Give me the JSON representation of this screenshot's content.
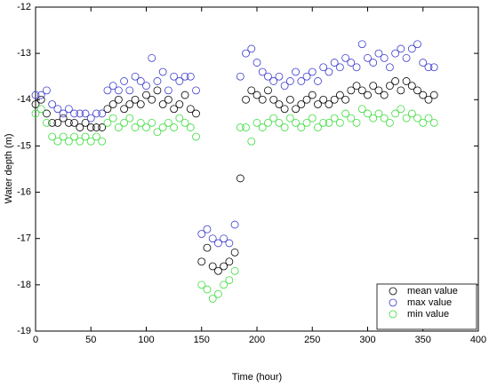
{
  "chart_data": {
    "type": "scatter",
    "xlabel": "Time (hour)",
    "ylabel": "Water depth (m)",
    "x": [
      0,
      5,
      10,
      15,
      20,
      25,
      30,
      35,
      40,
      45,
      50,
      55,
      60,
      65,
      70,
      75,
      80,
      85,
      90,
      95,
      100,
      105,
      110,
      115,
      120,
      125,
      130,
      135,
      140,
      145,
      150,
      155,
      160,
      165,
      170,
      175,
      180,
      185,
      190,
      195,
      200,
      205,
      210,
      215,
      220,
      225,
      230,
      235,
      240,
      245,
      250,
      255,
      260,
      265,
      270,
      275,
      280,
      285,
      290,
      295,
      300,
      305,
      310,
      315,
      320,
      325,
      330,
      335,
      340,
      345,
      350,
      355,
      360
    ],
    "series": [
      {
        "name": "mean value",
        "color": "#000000",
        "values": [
          -14.1,
          -14.0,
          -14.3,
          -14.5,
          -14.5,
          -14.4,
          -14.5,
          -14.5,
          -14.6,
          -14.5,
          -14.6,
          -14.6,
          -14.6,
          -14.2,
          -14.1,
          -14.0,
          -14.2,
          -14.1,
          -14.0,
          -14.1,
          -13.9,
          -14.0,
          -13.8,
          -14.1,
          -14.0,
          -14.2,
          -14.1,
          -13.9,
          -14.2,
          -14.3,
          -17.5,
          -17.2,
          -17.6,
          -17.7,
          -17.6,
          -17.5,
          -17.3,
          -15.7,
          -14.0,
          -13.8,
          -13.9,
          -14.0,
          -13.8,
          -14.0,
          -14.1,
          -14.2,
          -14.0,
          -14.2,
          -14.1,
          -14.0,
          -13.9,
          -14.1,
          -14.0,
          -14.1,
          -14.0,
          -13.9,
          -14.0,
          -13.8,
          -13.7,
          -13.8,
          -13.9,
          -13.7,
          -13.8,
          -13.9,
          -13.7,
          -13.6,
          -13.8,
          -13.6,
          -13.7,
          -13.8,
          -13.9,
          -14.0,
          -13.9
        ]
      },
      {
        "name": "max value",
        "color": "#3a3acc",
        "values": [
          -13.9,
          -13.9,
          -13.8,
          -14.1,
          -14.2,
          -14.3,
          -14.2,
          -14.3,
          -14.3,
          -14.3,
          -14.4,
          -14.3,
          -14.3,
          -13.8,
          -13.7,
          -13.8,
          -13.6,
          -13.8,
          -13.5,
          -13.6,
          -13.7,
          -13.1,
          -13.6,
          -13.4,
          -13.8,
          -13.5,
          -13.6,
          -13.5,
          -13.5,
          -13.8,
          -16.9,
          -16.8,
          -17.0,
          -17.1,
          -17.0,
          -17.1,
          -16.7,
          -13.5,
          -13.0,
          -12.9,
          -13.2,
          -13.4,
          -13.5,
          -13.6,
          -13.5,
          -13.7,
          -13.6,
          -13.4,
          -13.6,
          -13.5,
          -13.4,
          -13.6,
          -13.3,
          -13.4,
          -13.2,
          -13.3,
          -13.1,
          -13.2,
          -13.3,
          -12.8,
          -13.1,
          -13.2,
          -13.0,
          -13.1,
          -13.3,
          -13.0,
          -12.9,
          -13.1,
          -12.9,
          -12.8,
          -13.2,
          -13.3,
          -13.3
        ]
      },
      {
        "name": "min value",
        "color": "#3adc3a",
        "values": [
          -14.3,
          -14.2,
          -14.5,
          -14.8,
          -14.9,
          -14.8,
          -14.9,
          -14.8,
          -14.9,
          -14.8,
          -14.9,
          -14.8,
          -14.9,
          -14.5,
          -14.4,
          -14.6,
          -14.5,
          -14.4,
          -14.6,
          -14.5,
          -14.6,
          -14.5,
          -14.7,
          -14.6,
          -14.5,
          -14.6,
          -14.4,
          -14.5,
          -14.6,
          -14.8,
          -18.0,
          -18.1,
          -18.3,
          -18.2,
          -18.0,
          -17.9,
          -17.7,
          -14.6,
          -14.6,
          -14.9,
          -14.5,
          -14.6,
          -14.5,
          -14.4,
          -14.5,
          -14.6,
          -14.4,
          -14.5,
          -14.6,
          -14.5,
          -14.4,
          -14.6,
          -14.5,
          -14.5,
          -14.4,
          -14.5,
          -14.3,
          -14.4,
          -14.5,
          -14.2,
          -14.3,
          -14.4,
          -14.3,
          -14.4,
          -14.5,
          -14.3,
          -14.2,
          -14.4,
          -14.3,
          -14.4,
          -14.5,
          -14.4,
          -14.5
        ]
      }
    ],
    "xlim": [
      0,
      400
    ],
    "xticks": [
      0,
      50,
      100,
      150,
      200,
      250,
      300,
      350,
      400
    ],
    "ylim": [
      -19,
      -12
    ],
    "yticks": [
      -12,
      -13,
      -14,
      -15,
      -16,
      -17,
      -18,
      -19
    ],
    "grid": false,
    "legend": "lower right"
  }
}
